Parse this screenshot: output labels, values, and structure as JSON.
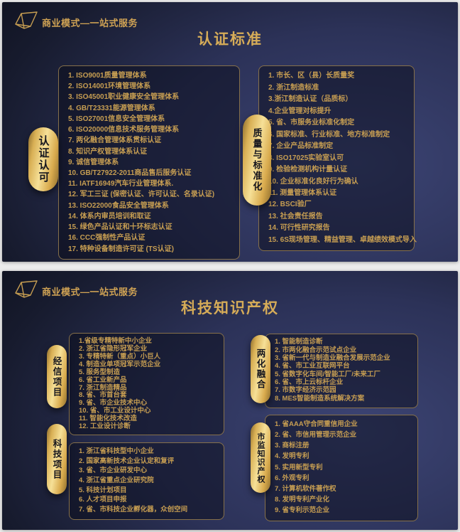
{
  "brand": "商业模式—一站式服务",
  "logo_icon": "gem-outline-icon",
  "colors": {
    "page_bg": "#ececec",
    "slide_blue": "#2c3258",
    "gold_text": "#c79e52",
    "title_gold": "#d6ac58",
    "pill_gold_light": "#f6e097",
    "pill_gold_dark": "#8f6e2d",
    "box_border": "#86704a",
    "pill_text": "#15151d"
  },
  "slides": [
    {
      "title": "认证标准",
      "groups": [
        {
          "label": "认证认可",
          "items": [
            "1. ISO9001质量管理体系",
            "2. ISO14001环境管理体系",
            "3. ISO45001职业健康安全管理体系",
            "4. GB/T23331能源管理体系",
            "5. ISO27001信息安全管理体系",
            "6. ISO20000信息技术服务管理体系",
            "7. 两化融合管理体系贯标认证",
            "8. 知识产权管理体系认证",
            "9. 诚信管理体系",
            "10. GB/T27922-2011商品售后服务认证",
            "11. IATF16949汽车行业管理体系.",
            "12. 军工三证 (保密认证、许可认证、名录认证)",
            "13. ISO22000食品安全管理体系",
            "14. 体系内审员培训和取证",
            "15. 绿色产品认证和十环标志认证",
            "16. CCC强制性产品认证",
            "17. 特种设备制造许可证 (TS认证)"
          ]
        },
        {
          "label": "质量与标准化",
          "items": [
            "1. 市长、区（县）长质量奖",
            "2. 浙江制造标准",
            "3.浙江制造认证（品质标）",
            "4.企业管理对标提升",
            "5. 省、市服务业标准化制定",
            "6. 国家标准、行业标准、地方标准制定",
            "7. 企业产品标准制定",
            "8. ISO17025实验室认可",
            "9. 检验检测机构计量认证",
            "10. 企业标准化良好行为确认",
            "11. 测量管理体系认证",
            "12. BSCI验厂",
            "13. 社会责任报告",
            "14. 可行性研究报告",
            "15. 6S现场管理、精益管理、卓越绩效模式导入"
          ]
        }
      ]
    },
    {
      "title": "科技知识产权",
      "groups": [
        {
          "label": "经信项目",
          "items": [
            "1.省级专精特新中小企业",
            "2. 浙江省隐形冠军企业",
            "3. 专精特新（重点）小巨人",
            "4. 制造业单项冠军示范企业",
            "5. 服务型制造",
            "6. 省工业新产品",
            "7. 浙江制造精品",
            "8. 省、市首台套",
            "9. 省、市企业技术中心",
            "10. 省、市工业设计中心",
            "11. 智能化技术改造",
            "12. 工业设计诊断"
          ]
        },
        {
          "label": "科技项目",
          "items": [
            "1. 浙江省科技型中小企业",
            "2. 国家高新技术企业认定和复评",
            "3. 省、市企业研发中心",
            "4. 浙江省重点企业研究院",
            "5. 科技计划项目",
            "6. 人才项目申报",
            "7. 省、市科技企业孵化器，众创空间"
          ]
        },
        {
          "label": "两化融合",
          "items": [
            "1. 智能制造诊断",
            "2. 市两化融合示范试点企业",
            "3. 省新一代与制造业融合发展示范企业",
            "4. 省、市工业互联网平台",
            "5. 省数字化车间/智能工厂/未来工厂",
            "6. 省、市上云标杆企业",
            "7. 市数字经济示范园",
            "8. MES智能制造系统解决方案"
          ]
        },
        {
          "label": "市监知识产权",
          "items": [
            "1. 省AAA守合同重信用企业",
            "2. 省、市信用管理示范企业",
            "3. 商标注册",
            "4. 发明专利",
            "5. 实用新型专利",
            "6. 外观专利",
            "7. 计算机软件著作权",
            "8. 发明专利产业化",
            "9. 省专利示范企业"
          ]
        }
      ]
    }
  ]
}
